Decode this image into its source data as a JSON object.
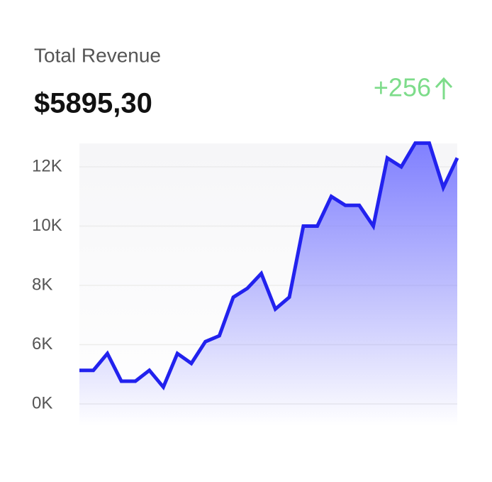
{
  "title": "Total Revenue",
  "amount": "$5895,30",
  "change": "+256",
  "chart_data": {
    "type": "area",
    "line_color": "#2222ee",
    "fill_color": "#8080ff",
    "categories": [
      null,
      null,
      null,
      null,
      null,
      null,
      null,
      null,
      null,
      null,
      null,
      null,
      null,
      null,
      null,
      null,
      null,
      null,
      null,
      null,
      null,
      null,
      null,
      null,
      null,
      null,
      null,
      null
    ],
    "values": [
      3400,
      3400,
      5100,
      2300,
      2300,
      3400,
      1700,
      5100,
      4100,
      6100,
      6300,
      7600,
      7900,
      8400,
      7200,
      7600,
      10000,
      10000,
      11000,
      10700,
      10700,
      10000,
      12300,
      12000,
      12800,
      12800,
      11300,
      12300
    ],
    "ylim": [
      -2200,
      12800
    ],
    "yticks": [
      {
        "value": 12000,
        "label": "12K"
      },
      {
        "value": 10000,
        "label": "10K"
      },
      {
        "value": 8000,
        "label": "8K"
      },
      {
        "value": 6000,
        "label": "6K"
      },
      {
        "value": 0,
        "label": "0K"
      }
    ],
    "grid": true
  }
}
